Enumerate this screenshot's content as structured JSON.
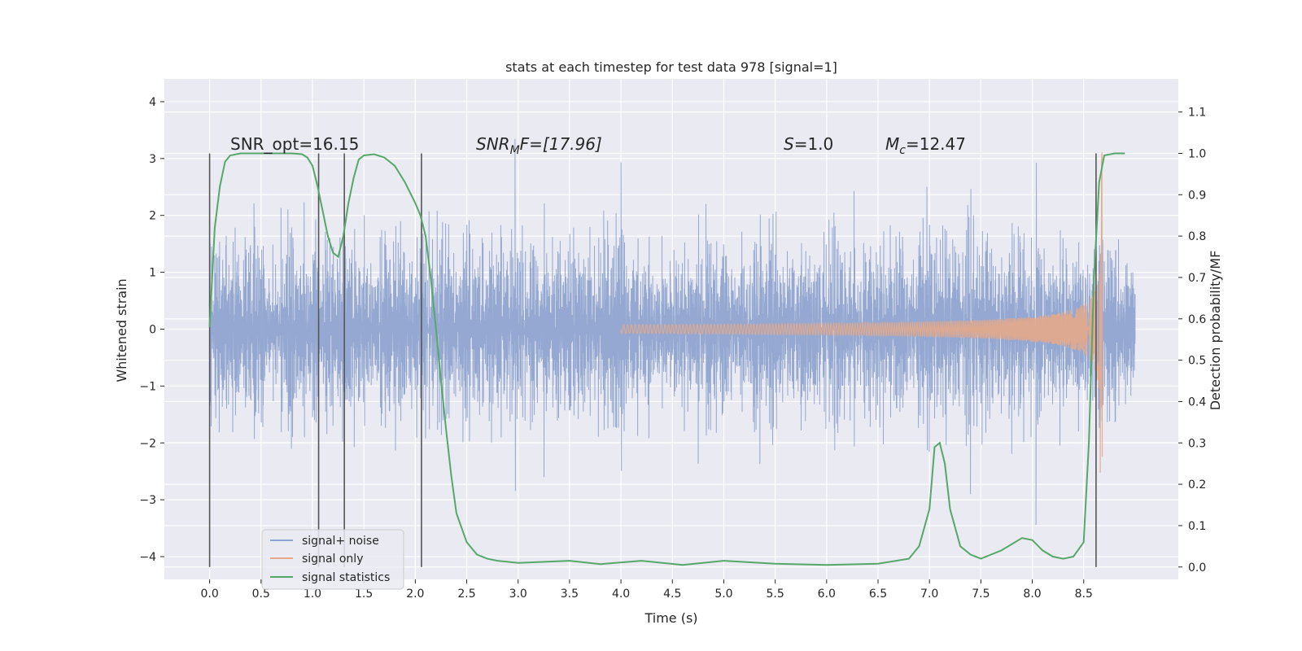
{
  "chart_data": {
    "type": "line",
    "title": "stats at each timestep for test data 978 [signal=1]",
    "xlabel": "Time (s)",
    "ylabel": "Whitened strain",
    "y2label": "Detection probability/MF",
    "xlim": [
      -0.44,
      9.42
    ],
    "ylim": [
      -4.4,
      4.4
    ],
    "y2lim": [
      -0.03,
      1.18
    ],
    "xticks": [
      "0.0",
      "0.5",
      "1.0",
      "1.5",
      "2.0",
      "2.5",
      "3.0",
      "3.5",
      "4.0",
      "4.5",
      "5.0",
      "5.5",
      "6.0",
      "6.5",
      "7.0",
      "7.5",
      "8.0",
      "8.5"
    ],
    "yticks": [
      "4",
      "3",
      "2",
      "1",
      "0",
      "−1",
      "−2",
      "−3",
      "−4"
    ],
    "y2ticks": [
      "1.1",
      "1.0",
      "0.9",
      "0.8",
      "0.7",
      "0.6",
      "0.5",
      "0.4",
      "0.3",
      "0.2",
      "0.1",
      "0.0"
    ],
    "grid": true,
    "legend_position": "lower-left",
    "annotations": {
      "snr_opt": "SNR_opt=16.15",
      "snr_mf_main": "SNR",
      "snr_mf_sub": "M",
      "snr_mf_tail": "F=[17.96]",
      "s_main": "S",
      "s_tail": "=1.0",
      "mc_main": "M",
      "mc_sub": "c",
      "mc_tail": "=12.47"
    },
    "vlines": [
      0.0,
      1.06,
      1.31,
      2.06,
      8.62
    ],
    "series": [
      {
        "name": "signal+ noise",
        "color": "#8fa4cf",
        "t_range": [
          0.0,
          9.0
        ],
        "envelope": [
          -3.6,
          4.0
        ]
      },
      {
        "name": "signal only",
        "color": "#e4a98a",
        "chirp_start": 4.0,
        "chirp_end": 8.68,
        "peak_amp": 3.2
      },
      {
        "name": "signal statistics",
        "color": "#55a868",
        "x": [
          0.0,
          0.05,
          0.1,
          0.15,
          0.2,
          0.3,
          0.5,
          0.8,
          0.9,
          0.95,
          1.0,
          1.05,
          1.1,
          1.15,
          1.2,
          1.25,
          1.3,
          1.35,
          1.4,
          1.45,
          1.5,
          1.6,
          1.7,
          1.8,
          1.9,
          2.0,
          2.05,
          2.1,
          2.15,
          2.2,
          2.25,
          2.3,
          2.35,
          2.4,
          2.5,
          2.6,
          2.7,
          2.8,
          3.0,
          3.5,
          3.8,
          4.2,
          4.6,
          5.0,
          5.5,
          6.0,
          6.5,
          6.8,
          6.9,
          7.0,
          7.05,
          7.1,
          7.15,
          7.2,
          7.3,
          7.4,
          7.5,
          7.7,
          7.9,
          8.0,
          8.1,
          8.2,
          8.3,
          8.4,
          8.5,
          8.55,
          8.6,
          8.65,
          8.7,
          8.8,
          8.9
        ],
        "y": [
          0.58,
          0.82,
          0.92,
          0.98,
          0.995,
          1.0,
          1.0,
          1.0,
          0.998,
          0.99,
          0.97,
          0.92,
          0.86,
          0.8,
          0.76,
          0.75,
          0.8,
          0.88,
          0.94,
          0.985,
          0.995,
          0.998,
          0.99,
          0.97,
          0.93,
          0.88,
          0.85,
          0.8,
          0.7,
          0.58,
          0.45,
          0.33,
          0.22,
          0.13,
          0.06,
          0.03,
          0.02,
          0.015,
          0.01,
          0.015,
          0.007,
          0.015,
          0.005,
          0.015,
          0.008,
          0.005,
          0.008,
          0.02,
          0.05,
          0.14,
          0.29,
          0.3,
          0.25,
          0.14,
          0.05,
          0.03,
          0.02,
          0.04,
          0.07,
          0.065,
          0.04,
          0.025,
          0.02,
          0.025,
          0.06,
          0.3,
          0.7,
          0.93,
          0.995,
          1.0,
          1.0
        ]
      }
    ]
  }
}
